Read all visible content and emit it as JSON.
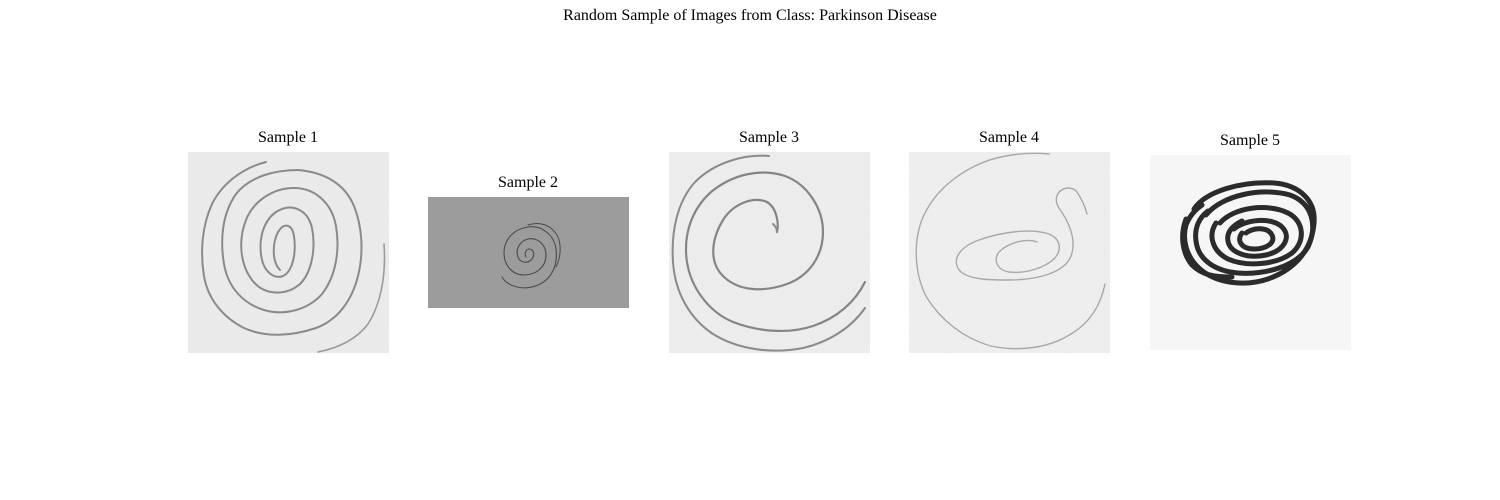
{
  "figure": {
    "title": "Random Sample of Images from Class: Parkinson Disease"
  },
  "samples": [
    {
      "title": "Sample 1",
      "image": "pencil-spiral-drawing",
      "background": "#ececec",
      "stroke": "#8a8a8a"
    },
    {
      "title": "Sample 2",
      "image": "small-spiral-on-gray",
      "background": "#9c9c9c",
      "stroke": "#4a4a4a"
    },
    {
      "title": "Sample 3",
      "image": "pencil-spiral-drawing",
      "background": "#eeeeee",
      "stroke": "#858585"
    },
    {
      "title": "Sample 4",
      "image": "faint-pencil-spiral",
      "background": "#efefef",
      "stroke": "#a8a8a8"
    },
    {
      "title": "Sample 5",
      "image": "bold-tight-spiral",
      "background": "#f6f6f6",
      "stroke": "#2b2b2b"
    }
  ]
}
